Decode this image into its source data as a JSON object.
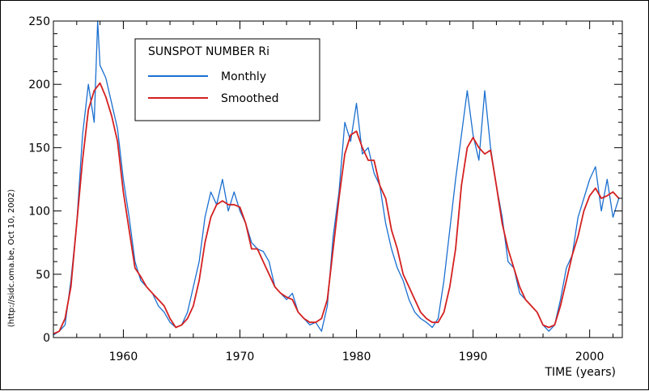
{
  "chart_data": {
    "type": "line",
    "title": "",
    "legend": {
      "title": "SUNSPOT NUMBER Ri",
      "placement": "top-left",
      "entries": [
        "Monthly",
        "Smoothed"
      ]
    },
    "xlabel": "TIME (years)",
    "ylabel": "(http://sidc.oma.be, Oct 10, 2002)",
    "xlim": [
      1954,
      2002.8
    ],
    "ylim": [
      0,
      250
    ],
    "xticks": [
      "1960",
      "1970",
      "1980",
      "1990",
      "2000"
    ],
    "yticks": [
      "0",
      "50",
      "100",
      "150",
      "200",
      "250"
    ],
    "grid": false,
    "series": [
      {
        "name": "Monthly",
        "color": "#1a6fd0",
        "x": [
          1954.0,
          1954.5,
          1955.0,
          1955.5,
          1956.0,
          1956.5,
          1957.0,
          1957.5,
          1957.8,
          1958.0,
          1958.5,
          1959.0,
          1959.5,
          1960.0,
          1960.5,
          1961.0,
          1961.5,
          1962.0,
          1962.5,
          1963.0,
          1963.5,
          1964.0,
          1964.5,
          1965.0,
          1965.5,
          1966.0,
          1966.5,
          1967.0,
          1967.5,
          1968.0,
          1968.5,
          1969.0,
          1969.5,
          1970.0,
          1970.5,
          1971.0,
          1971.5,
          1972.0,
          1972.5,
          1973.0,
          1973.5,
          1974.0,
          1974.5,
          1975.0,
          1975.5,
          1976.0,
          1976.5,
          1977.0,
          1977.5,
          1978.0,
          1978.5,
          1979.0,
          1979.5,
          1980.0,
          1980.5,
          1981.0,
          1981.5,
          1982.0,
          1982.5,
          1983.0,
          1983.5,
          1984.0,
          1984.5,
          1985.0,
          1985.5,
          1986.0,
          1986.5,
          1987.0,
          1987.5,
          1988.0,
          1988.5,
          1989.0,
          1989.5,
          1990.0,
          1990.5,
          1991.0,
          1991.5,
          1992.0,
          1992.5,
          1993.0,
          1993.5,
          1994.0,
          1994.5,
          1995.0,
          1995.5,
          1996.0,
          1996.5,
          1997.0,
          1997.5,
          1998.0,
          1998.5,
          1999.0,
          1999.5,
          2000.0,
          2000.5,
          2001.0,
          2001.5,
          2002.0,
          2002.5
        ],
        "y": [
          2,
          5,
          10,
          45,
          90,
          160,
          200,
          170,
          254,
          215,
          205,
          185,
          165,
          125,
          95,
          60,
          45,
          40,
          35,
          25,
          20,
          12,
          8,
          10,
          20,
          40,
          60,
          95,
          115,
          105,
          125,
          100,
          115,
          100,
          90,
          75,
          70,
          68,
          60,
          40,
          35,
          30,
          35,
          20,
          15,
          10,
          12,
          5,
          25,
          80,
          115,
          170,
          155,
          185,
          145,
          150,
          130,
          120,
          90,
          70,
          55,
          45,
          30,
          20,
          15,
          12,
          8,
          15,
          45,
          85,
          125,
          160,
          195,
          160,
          140,
          195,
          150,
          120,
          95,
          60,
          55,
          35,
          30,
          25,
          20,
          10,
          5,
          10,
          30,
          55,
          65,
          95,
          110,
          125,
          135,
          100,
          125,
          95,
          110
        ]
      },
      {
        "name": "Smoothed",
        "color": "#d42020",
        "x": [
          1954.0,
          1954.5,
          1955.0,
          1955.5,
          1956.0,
          1956.5,
          1957.0,
          1957.5,
          1958.0,
          1958.5,
          1959.0,
          1959.5,
          1960.0,
          1960.5,
          1961.0,
          1961.5,
          1962.0,
          1962.5,
          1963.0,
          1963.5,
          1964.0,
          1964.5,
          1965.0,
          1965.5,
          1966.0,
          1966.5,
          1967.0,
          1967.5,
          1968.0,
          1968.5,
          1969.0,
          1969.5,
          1970.0,
          1970.5,
          1971.0,
          1971.5,
          1972.0,
          1972.5,
          1973.0,
          1973.5,
          1974.0,
          1974.5,
          1975.0,
          1975.5,
          1976.0,
          1976.5,
          1977.0,
          1977.5,
          1978.0,
          1978.5,
          1979.0,
          1979.5,
          1980.0,
          1980.5,
          1981.0,
          1981.5,
          1982.0,
          1982.5,
          1983.0,
          1983.5,
          1984.0,
          1984.5,
          1985.0,
          1985.5,
          1986.0,
          1986.5,
          1987.0,
          1987.5,
          1988.0,
          1988.5,
          1989.0,
          1989.5,
          1990.0,
          1990.5,
          1991.0,
          1991.5,
          1992.0,
          1992.5,
          1993.0,
          1993.5,
          1994.0,
          1994.5,
          1995.0,
          1995.5,
          1996.0,
          1996.5,
          1997.0,
          1997.5,
          1998.0,
          1998.5,
          1999.0,
          1999.5,
          2000.0,
          2000.5,
          2001.0,
          2001.5,
          2002.0,
          2002.5
        ],
        "y": [
          3,
          5,
          15,
          40,
          90,
          140,
          180,
          195,
          201,
          190,
          175,
          155,
          115,
          85,
          55,
          48,
          40,
          35,
          30,
          25,
          15,
          8,
          10,
          15,
          25,
          45,
          75,
          95,
          105,
          108,
          105,
          105,
          103,
          90,
          70,
          70,
          60,
          50,
          40,
          35,
          32,
          30,
          20,
          15,
          12,
          12,
          15,
          30,
          70,
          110,
          145,
          160,
          163,
          150,
          140,
          140,
          120,
          110,
          85,
          70,
          50,
          40,
          30,
          20,
          15,
          12,
          12,
          20,
          40,
          70,
          120,
          150,
          158,
          150,
          145,
          148,
          120,
          90,
          70,
          55,
          40,
          30,
          25,
          20,
          10,
          8,
          10,
          25,
          45,
          65,
          80,
          100,
          112,
          118,
          110,
          112,
          115,
          110
        ]
      }
    ]
  }
}
